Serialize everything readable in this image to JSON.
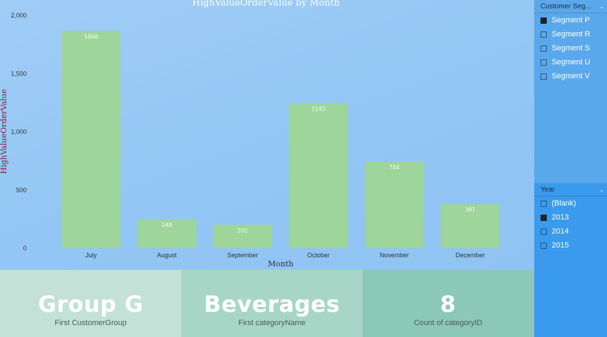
{
  "chart_data": {
    "type": "bar",
    "title": "HighValueOrderValue by Month",
    "xlabel": "Month",
    "ylabel": "HighValueOrderValue",
    "categories": [
      "July",
      "August",
      "September",
      "October",
      "November",
      "December"
    ],
    "values": [
      1868,
      248,
      202,
      1245,
      744,
      381
    ],
    "data_labels": [
      "1868",
      "248",
      "202",
      "1245",
      "744",
      "381"
    ],
    "ylim": [
      0,
      2000
    ],
    "yticks": [
      0,
      500,
      1000,
      1500,
      2000
    ],
    "ytick_labels": [
      "0",
      "500",
      "1,000",
      "1,500",
      "2,000"
    ],
    "grid": false,
    "bar_color": "#9dd59a"
  },
  "cards": [
    {
      "value": "Group G",
      "label": "First CustomerGroup"
    },
    {
      "value": "Beverages",
      "label": "First categoryName"
    },
    {
      "value": "8",
      "label": "Count of categoryID"
    }
  ],
  "slicers": {
    "segment": {
      "title": "Customer Seg...",
      "items": [
        {
          "label": "Segment P",
          "checked": true
        },
        {
          "label": "Segment R",
          "checked": false
        },
        {
          "label": "Segment S",
          "checked": false
        },
        {
          "label": "Segment U",
          "checked": false
        },
        {
          "label": "Segment V",
          "checked": false
        }
      ]
    },
    "year": {
      "title": "Year",
      "items": [
        {
          "label": "(Blank)",
          "checked": false
        },
        {
          "label": "2013",
          "checked": true
        },
        {
          "label": "2014",
          "checked": false
        },
        {
          "label": "2015",
          "checked": false
        }
      ]
    }
  },
  "icons": {
    "collapse": "chevron-down-icon"
  }
}
